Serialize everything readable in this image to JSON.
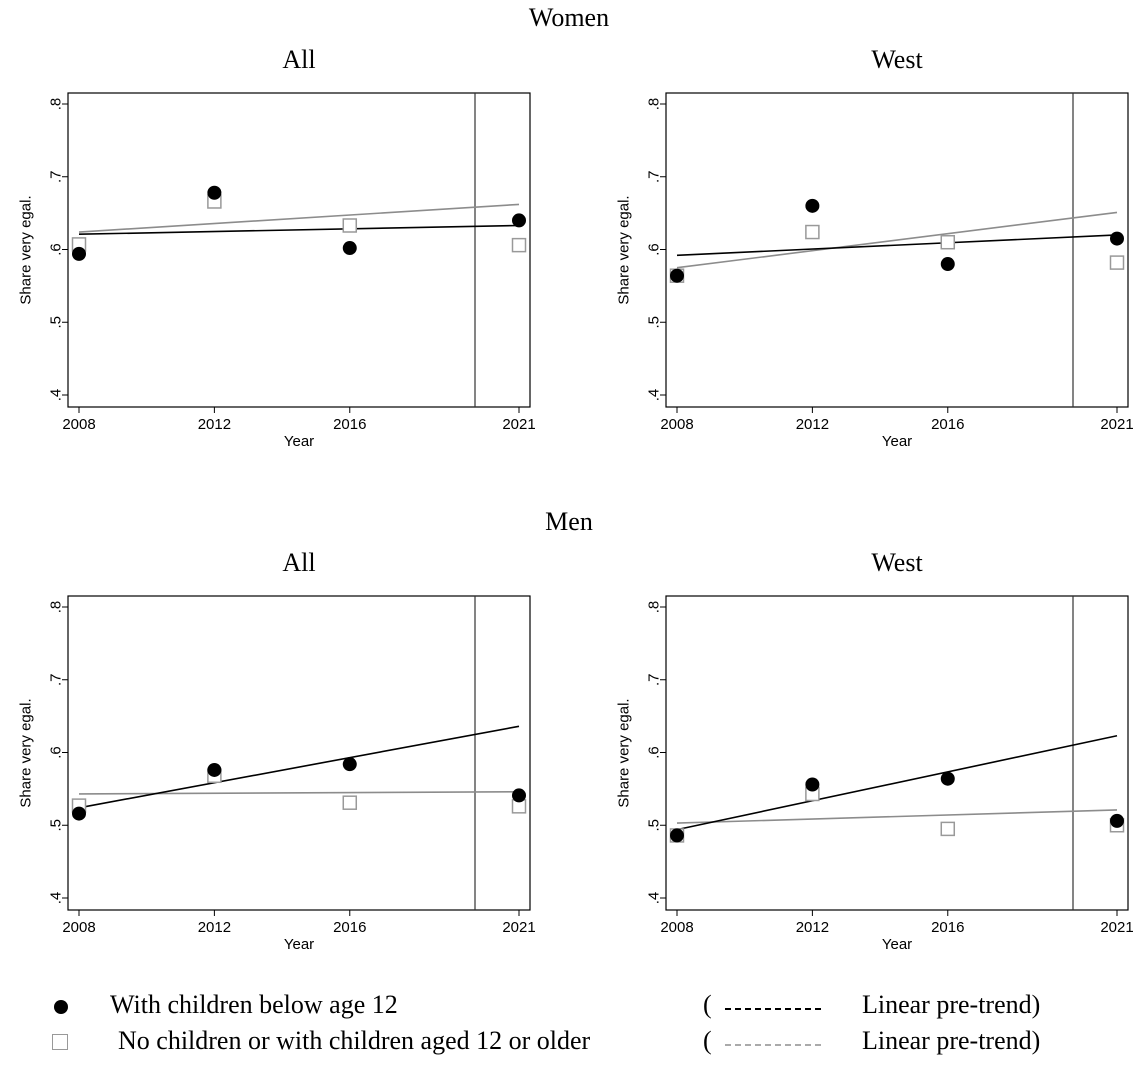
{
  "group_titles": [
    "Women",
    "Men"
  ],
  "legend": {
    "items": [
      {
        "label": "With children below age 12",
        "trend": "Linear pre-trend)",
        "paren": "(",
        "marker": "filled-circle",
        "color": "#000000"
      },
      {
        "label": "No children or with children aged 12 or older",
        "trend": "Linear pre-trend)",
        "paren": "(",
        "marker": "hollow-square",
        "color": "#999999"
      }
    ]
  },
  "chart_data": [
    {
      "type": "scatter",
      "group": "Women",
      "title": "All",
      "xlabel": "Year",
      "ylabel": "Share very egal.",
      "x_ticks": [
        2008,
        2012,
        2016,
        2021
      ],
      "x_tick_labels": [
        "2008",
        "2012",
        "2016",
        "2021"
      ],
      "y_ticks": [
        0.4,
        0.5,
        0.6,
        0.7,
        0.8
      ],
      "y_tick_labels": [
        ".4",
        ".5",
        ".6",
        ".7",
        ".8"
      ],
      "xlim": [
        2008,
        2021
      ],
      "ylim": [
        0.4,
        0.8
      ],
      "vline": 2019.7,
      "series": [
        {
          "name": "With children below age 12",
          "x": [
            2008,
            2012,
            2016,
            2021
          ],
          "values": [
            0.594,
            0.678,
            0.602,
            0.64
          ],
          "trend": [
            0.621,
            0.633
          ]
        },
        {
          "name": "No children or with children aged 12 or older",
          "x": [
            2008,
            2012,
            2016,
            2021
          ],
          "values": [
            0.607,
            0.666,
            0.633,
            0.606
          ],
          "trend": [
            0.624,
            0.662
          ]
        }
      ]
    },
    {
      "type": "scatter",
      "group": "Women",
      "title": "West",
      "xlabel": "Year",
      "ylabel": "Share very egal.",
      "x_ticks": [
        2008,
        2012,
        2016,
        2021
      ],
      "x_tick_labels": [
        "2008",
        "2012",
        "2016",
        "2021"
      ],
      "y_ticks": [
        0.4,
        0.5,
        0.6,
        0.7,
        0.8
      ],
      "y_tick_labels": [
        ".4",
        ".5",
        ".6",
        ".7",
        ".8"
      ],
      "xlim": [
        2008,
        2021
      ],
      "ylim": [
        0.4,
        0.8
      ],
      "vline": 2019.7,
      "series": [
        {
          "name": "With children below age 12",
          "x": [
            2008,
            2012,
            2016,
            2021
          ],
          "values": [
            0.564,
            0.66,
            0.58,
            0.615
          ],
          "trend": [
            0.592,
            0.62
          ]
        },
        {
          "name": "No children or with children aged 12 or older",
          "x": [
            2008,
            2012,
            2016,
            2021
          ],
          "values": [
            0.564,
            0.624,
            0.61,
            0.582
          ],
          "trend": [
            0.575,
            0.651
          ]
        }
      ]
    },
    {
      "type": "scatter",
      "group": "Men",
      "title": "All",
      "xlabel": "Year",
      "ylabel": "Share very egal.",
      "x_ticks": [
        2008,
        2012,
        2016,
        2021
      ],
      "x_tick_labels": [
        "2008",
        "2012",
        "2016",
        "2021"
      ],
      "y_ticks": [
        0.4,
        0.5,
        0.6,
        0.7,
        0.8
      ],
      "y_tick_labels": [
        ".4",
        ".5",
        ".6",
        ".7",
        ".8"
      ],
      "xlim": [
        2008,
        2021
      ],
      "ylim": [
        0.4,
        0.8
      ],
      "vline": 2019.7,
      "series": [
        {
          "name": "With children below age 12",
          "x": [
            2008,
            2012,
            2016,
            2021
          ],
          "values": [
            0.516,
            0.576,
            0.584,
            0.541
          ],
          "trend": [
            0.524,
            0.636
          ]
        },
        {
          "name": "No children or with children aged 12 or older",
          "x": [
            2008,
            2012,
            2016,
            2021
          ],
          "values": [
            0.527,
            0.568,
            0.531,
            0.526
          ],
          "trend": [
            0.543,
            0.546
          ]
        }
      ]
    },
    {
      "type": "scatter",
      "group": "Men",
      "title": "West",
      "xlabel": "Year",
      "ylabel": "Share very egal.",
      "x_ticks": [
        2008,
        2012,
        2016,
        2021
      ],
      "x_tick_labels": [
        "2008",
        "2012",
        "2016",
        "2021"
      ],
      "y_ticks": [
        0.4,
        0.5,
        0.6,
        0.7,
        0.8
      ],
      "y_tick_labels": [
        ".4",
        ".5",
        ".6",
        ".7",
        ".8"
      ],
      "xlim": [
        2008,
        2021
      ],
      "ylim": [
        0.4,
        0.8
      ],
      "vline": 2019.7,
      "series": [
        {
          "name": "With children below age 12",
          "x": [
            2008,
            2012,
            2016,
            2021
          ],
          "values": [
            0.486,
            0.556,
            0.564,
            0.506
          ],
          "trend": [
            0.494,
            0.623
          ]
        },
        {
          "name": "No children or with children aged 12 or older",
          "x": [
            2008,
            2012,
            2016,
            2021
          ],
          "values": [
            0.486,
            0.543,
            0.495,
            0.5
          ],
          "trend": [
            0.503,
            0.521
          ]
        }
      ]
    }
  ]
}
